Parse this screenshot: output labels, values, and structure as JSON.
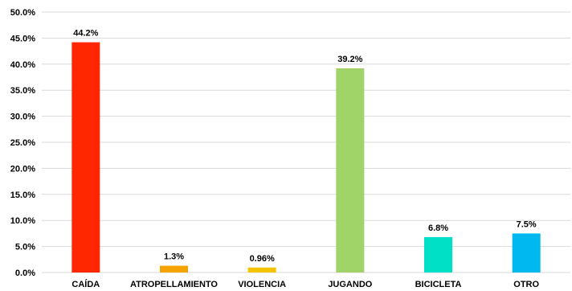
{
  "chart_data": {
    "type": "bar",
    "categories": [
      "CAÍDA",
      "ATROPELLAMIENTO",
      "VIOLENCIA",
      "JUGANDO",
      "BICICLETA",
      "OTRO"
    ],
    "values": [
      44.2,
      1.3,
      0.96,
      39.2,
      6.8,
      7.5
    ],
    "data_labels": [
      "44.2%",
      "1.3%",
      "0.96%",
      "39.2%",
      "6.8%",
      "7.5%"
    ],
    "colors": [
      "#ff2600",
      "#f5a300",
      "#f5c400",
      "#a0d468",
      "#00e0c6",
      "#00b8f0"
    ],
    "ylim": [
      0,
      50
    ],
    "yticks": [
      0,
      5,
      10,
      15,
      20,
      25,
      30,
      35,
      40,
      45,
      50
    ],
    "ytick_labels": [
      "0.0%",
      "5.0%",
      "10.0%",
      "15.0%",
      "20.0%",
      "25.0%",
      "30.0%",
      "35.0%",
      "40.0%",
      "45.0%",
      "50.0%"
    ],
    "grid": true,
    "legend": "none"
  }
}
